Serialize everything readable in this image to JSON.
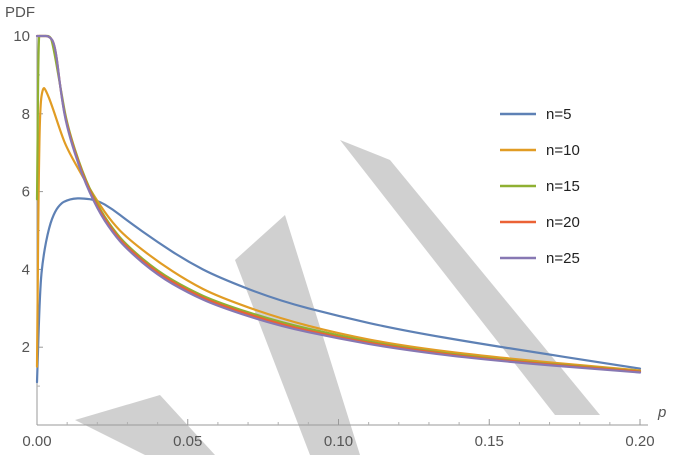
{
  "chart_data": {
    "type": "line",
    "title": "",
    "xlabel": "p",
    "ylabel": "PDF",
    "xlim": [
      0,
      0.2
    ],
    "ylim": [
      0,
      10
    ],
    "xticks": [
      0.0,
      0.05,
      0.1,
      0.15,
      0.2
    ],
    "xtick_labels": [
      "0.00",
      "0.05",
      "0.10",
      "0.15",
      "0.20"
    ],
    "yticks": [
      2,
      4,
      6,
      8,
      10
    ],
    "ytick_labels": [
      "2",
      "4",
      "6",
      "8",
      "10"
    ],
    "grid": false,
    "legend_position": "right",
    "series": [
      {
        "name": "n=5",
        "color": "#5E81B5",
        "x": [
          0.0,
          0.001,
          0.002,
          0.004,
          0.006,
          0.008,
          0.01,
          0.012,
          0.015,
          0.02,
          0.025,
          0.03,
          0.04,
          0.05,
          0.06,
          0.08,
          0.1,
          0.12,
          0.15,
          0.2
        ],
        "y": [
          1.1,
          3.5,
          4.3,
          5.1,
          5.5,
          5.7,
          5.78,
          5.82,
          5.83,
          5.78,
          5.55,
          5.25,
          4.7,
          4.2,
          3.8,
          3.2,
          2.8,
          2.45,
          2.05,
          1.45
        ]
      },
      {
        "name": "n=10",
        "color": "#E19C24",
        "x": [
          0.0,
          0.0005,
          0.001,
          0.002,
          0.003,
          0.005,
          0.008,
          0.01,
          0.015,
          0.02,
          0.025,
          0.03,
          0.04,
          0.05,
          0.06,
          0.08,
          0.1,
          0.12,
          0.15,
          0.2
        ],
        "y": [
          1.5,
          6.0,
          8.2,
          8.7,
          8.6,
          8.2,
          7.5,
          7.1,
          6.4,
          5.75,
          5.2,
          4.8,
          4.2,
          3.7,
          3.3,
          2.75,
          2.35,
          2.05,
          1.75,
          1.4
        ]
      },
      {
        "name": "n=15",
        "color": "#8FB032",
        "x": [
          0.0,
          0.0005,
          0.001,
          0.002,
          0.003,
          0.004,
          0.005,
          0.008,
          0.01,
          0.015,
          0.02,
          0.025,
          0.03,
          0.04,
          0.05,
          0.06,
          0.08,
          0.1,
          0.12,
          0.15,
          0.2
        ],
        "y": [
          5.8,
          10.0,
          10.0,
          10.0,
          10.0,
          10.0,
          9.9,
          8.6,
          7.7,
          6.5,
          5.65,
          5.05,
          4.6,
          3.95,
          3.5,
          3.15,
          2.65,
          2.3,
          2.0,
          1.7,
          1.38
        ]
      },
      {
        "name": "n=20",
        "color": "#EB6235",
        "x": [
          0.0,
          0.002,
          0.004,
          0.006,
          0.008,
          0.01,
          0.015,
          0.02,
          0.025,
          0.03,
          0.04,
          0.05,
          0.06,
          0.08,
          0.1,
          0.12,
          0.15,
          0.2
        ],
        "y": [
          10.0,
          10.0,
          10.0,
          9.8,
          8.5,
          7.65,
          6.45,
          5.6,
          5.0,
          4.55,
          3.9,
          3.45,
          3.1,
          2.6,
          2.25,
          1.98,
          1.68,
          1.37
        ]
      },
      {
        "name": "n=25",
        "color": "#8778B3",
        "x": [
          0.0,
          0.002,
          0.004,
          0.006,
          0.008,
          0.01,
          0.015,
          0.02,
          0.025,
          0.03,
          0.04,
          0.05,
          0.06,
          0.08,
          0.1,
          0.12,
          0.15,
          0.2
        ],
        "y": [
          10.0,
          10.0,
          10.0,
          9.8,
          8.5,
          7.6,
          6.4,
          5.55,
          4.95,
          4.5,
          3.85,
          3.4,
          3.05,
          2.55,
          2.22,
          1.95,
          1.66,
          1.35
        ]
      }
    ]
  }
}
